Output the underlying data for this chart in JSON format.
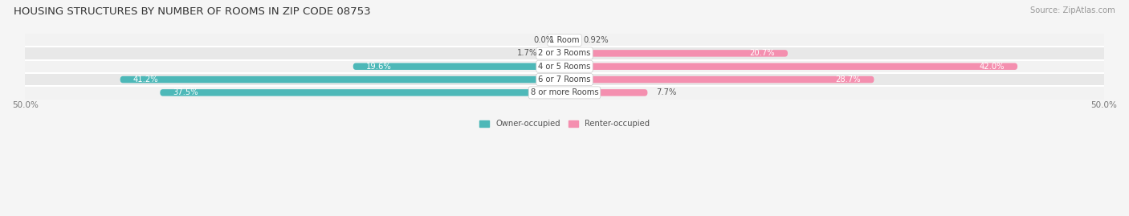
{
  "title": "HOUSING STRUCTURES BY NUMBER OF ROOMS IN ZIP CODE 08753",
  "source": "Source: ZipAtlas.com",
  "categories": [
    "1 Room",
    "2 or 3 Rooms",
    "4 or 5 Rooms",
    "6 or 7 Rooms",
    "8 or more Rooms"
  ],
  "owner_values": [
    0.0,
    1.7,
    19.6,
    41.2,
    37.5
  ],
  "renter_values": [
    0.92,
    20.7,
    42.0,
    28.7,
    7.7
  ],
  "owner_color": "#4db8b8",
  "renter_color": "#f48faf",
  "row_bg_even": "#f2f2f2",
  "row_bg_odd": "#e8e8e8",
  "axis_max": 50.0,
  "bar_height": 0.52,
  "figsize": [
    14.06,
    2.69
  ],
  "dpi": 100,
  "title_fontsize": 9.5,
  "label_fontsize": 7.2,
  "tick_fontsize": 7.5,
  "source_fontsize": 7.2,
  "value_fontsize": 7.2,
  "cat_fontsize": 7.2
}
